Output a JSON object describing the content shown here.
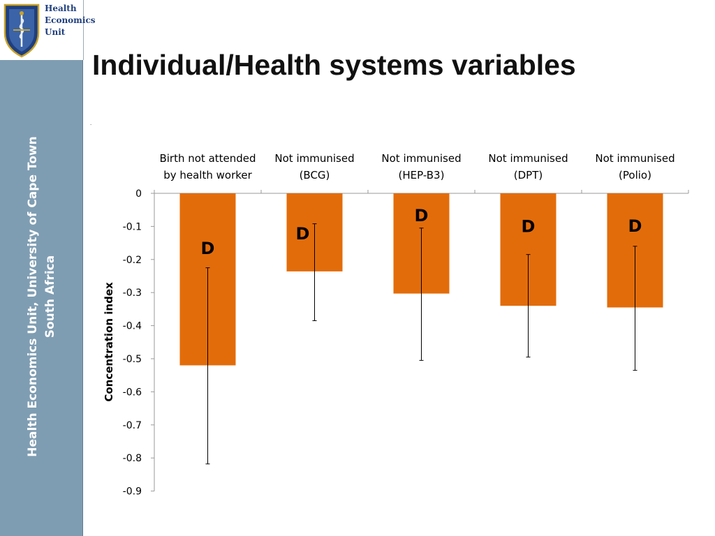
{
  "logo": {
    "line1": "Health",
    "line2": "Economics",
    "line3": "Unit",
    "navy": "#1f3f7f",
    "gold": "#c9a227"
  },
  "sidebar": {
    "line1": "Health Economics Unit, University of Cape Town",
    "line2": "South Africa",
    "color": "#7f9db2"
  },
  "page_title": "Individual/Health systems variables",
  "stray_mark": ".",
  "chart_data": {
    "type": "bar",
    "title": "",
    "xlabel": "",
    "ylabel": "Concentration index",
    "ylim": [
      -0.9,
      0
    ],
    "yticks": [
      "0",
      "-0.1",
      "-0.2",
      "-0.3",
      "-0.4",
      "-0.5",
      "-0.6",
      "-0.7",
      "-0.8",
      "-0.9"
    ],
    "categories": [
      [
        "Birth not attended",
        "by health worker"
      ],
      [
        "Not immunised",
        "(BCG)"
      ],
      [
        "Not immunised",
        "(HEP-B3)"
      ],
      [
        "Not immunised",
        "(DPT)"
      ],
      [
        "Not immunised",
        "(Polio)"
      ]
    ],
    "values": [
      -0.52,
      -0.236,
      -0.303,
      -0.34,
      -0.345
    ],
    "error_low": [
      -0.818,
      -0.385,
      -0.505,
      -0.495,
      -0.535
    ],
    "error_high": [
      -0.225,
      -0.092,
      -0.105,
      -0.185,
      -0.16
    ],
    "annotations": [
      "D",
      "D",
      "D",
      "D",
      "D"
    ],
    "annotation_y": [
      -0.165,
      -0.12,
      -0.065,
      -0.098,
      -0.097
    ],
    "bar_color": "#e36c0a"
  }
}
